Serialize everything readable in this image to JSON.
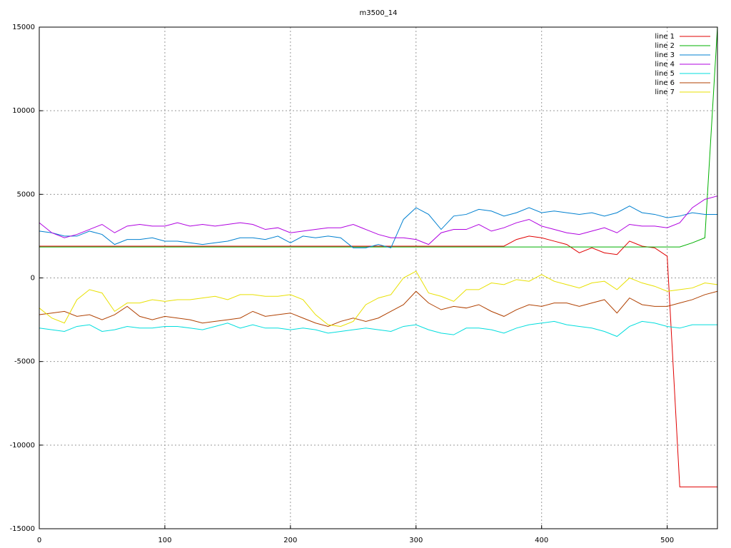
{
  "chart_data": {
    "type": "line",
    "title": "m3500_14",
    "x": [
      0,
      10,
      20,
      30,
      40,
      50,
      60,
      70,
      80,
      90,
      100,
      110,
      120,
      130,
      140,
      150,
      160,
      170,
      180,
      190,
      200,
      210,
      220,
      230,
      240,
      250,
      260,
      270,
      280,
      290,
      300,
      310,
      320,
      330,
      340,
      350,
      360,
      370,
      380,
      390,
      400,
      410,
      420,
      430,
      440,
      450,
      460,
      470,
      480,
      490,
      500,
      510,
      520,
      530,
      540
    ],
    "xlim": [
      0,
      540
    ],
    "xticks": [
      0,
      100,
      200,
      300,
      400,
      500
    ],
    "ylim": [
      -15000,
      15000
    ],
    "yticks": [
      -15000,
      -10000,
      -5000,
      0,
      5000,
      10000,
      15000
    ],
    "grid": true,
    "legend": "top-right",
    "series": [
      {
        "name": "line 1",
        "color": "#e00000",
        "values": [
          1900,
          1900,
          1900,
          1900,
          1900,
          1900,
          1900,
          1900,
          1900,
          1900,
          1900,
          1900,
          1900,
          1900,
          1900,
          1900,
          1900,
          1900,
          1900,
          1900,
          1900,
          1900,
          1900,
          1900,
          1900,
          1900,
          1900,
          1900,
          1900,
          1900,
          1900,
          1900,
          1900,
          1900,
          1900,
          1900,
          1900,
          1900,
          2300,
          2500,
          2400,
          2200,
          2000,
          1500,
          1800,
          1500,
          1400,
          2200,
          1900,
          1800,
          1300,
          -12500,
          -12500,
          -12500,
          -12500
        ]
      },
      {
        "name": "line 2",
        "color": "#00b000",
        "values": [
          1850,
          1850,
          1850,
          1850,
          1850,
          1850,
          1850,
          1850,
          1850,
          1850,
          1850,
          1850,
          1850,
          1850,
          1850,
          1850,
          1850,
          1850,
          1850,
          1850,
          1850,
          1850,
          1850,
          1850,
          1850,
          1850,
          1850,
          1850,
          1850,
          1850,
          1850,
          1850,
          1850,
          1850,
          1850,
          1850,
          1850,
          1850,
          1850,
          1850,
          1850,
          1850,
          1850,
          1850,
          1850,
          1850,
          1850,
          1850,
          1850,
          1850,
          1850,
          1850,
          2100,
          2400,
          15000
        ]
      },
      {
        "name": "line 3",
        "color": "#0080d0",
        "values": [
          2800,
          2700,
          2500,
          2500,
          2800,
          2600,
          2000,
          2300,
          2300,
          2400,
          2200,
          2200,
          2100,
          2000,
          2100,
          2200,
          2400,
          2400,
          2300,
          2500,
          2100,
          2500,
          2400,
          2500,
          2400,
          1800,
          1800,
          2000,
          1800,
          3500,
          4200,
          3800,
          2900,
          3700,
          3800,
          4100,
          4000,
          3700,
          3900,
          4200,
          3900,
          4000,
          3900,
          3800,
          3900,
          3700,
          3900,
          4300,
          3900,
          3800,
          3600,
          3700,
          3900,
          3800,
          3800
        ]
      },
      {
        "name": "line 4",
        "color": "#b000e0",
        "values": [
          3300,
          2700,
          2400,
          2600,
          2900,
          3200,
          2700,
          3100,
          3200,
          3100,
          3100,
          3300,
          3100,
          3200,
          3100,
          3200,
          3300,
          3200,
          2900,
          3000,
          2700,
          2800,
          2900,
          3000,
          3000,
          3200,
          2900,
          2600,
          2400,
          2400,
          2300,
          2000,
          2700,
          2900,
          2900,
          3200,
          2800,
          3000,
          3300,
          3500,
          3100,
          2900,
          2700,
          2600,
          2800,
          3000,
          2700,
          3200,
          3100,
          3100,
          3000,
          3300,
          4200,
          4700,
          4900
        ]
      },
      {
        "name": "line 5",
        "color": "#00dddd",
        "values": [
          -3000,
          -3100,
          -3200,
          -2900,
          -2800,
          -3200,
          -3100,
          -2900,
          -3000,
          -3000,
          -2900,
          -2900,
          -3000,
          -3100,
          -2900,
          -2700,
          -3000,
          -2800,
          -3000,
          -3000,
          -3100,
          -3000,
          -3100,
          -3300,
          -3200,
          -3100,
          -3000,
          -3100,
          -3200,
          -2900,
          -2800,
          -3100,
          -3300,
          -3400,
          -3000,
          -3000,
          -3100,
          -3300,
          -3000,
          -2800,
          -2700,
          -2600,
          -2800,
          -2900,
          -3000,
          -3200,
          -3500,
          -2900,
          -2600,
          -2700,
          -2900,
          -3000,
          -2800,
          -2800,
          -2800
        ]
      },
      {
        "name": "line 6",
        "color": "#b04000",
        "values": [
          -2200,
          -2100,
          -2000,
          -2300,
          -2200,
          -2500,
          -2200,
          -1700,
          -2300,
          -2500,
          -2300,
          -2400,
          -2500,
          -2700,
          -2600,
          -2500,
          -2400,
          -2000,
          -2300,
          -2200,
          -2100,
          -2400,
          -2700,
          -2900,
          -2600,
          -2400,
          -2600,
          -2400,
          -2000,
          -1600,
          -800,
          -1500,
          -1900,
          -1700,
          -1800,
          -1600,
          -2000,
          -2300,
          -1900,
          -1600,
          -1700,
          -1500,
          -1500,
          -1700,
          -1500,
          -1300,
          -2100,
          -1200,
          -1600,
          -1700,
          -1700,
          -1500,
          -1300,
          -1000,
          -800
        ]
      },
      {
        "name": "line 7",
        "color": "#e8e000",
        "values": [
          -1800,
          -2400,
          -2700,
          -1300,
          -700,
          -900,
          -2000,
          -1500,
          -1500,
          -1300,
          -1400,
          -1300,
          -1300,
          -1200,
          -1100,
          -1300,
          -1000,
          -1000,
          -1100,
          -1100,
          -1000,
          -1300,
          -2200,
          -2800,
          -2900,
          -2600,
          -1600,
          -1200,
          -1000,
          0,
          400,
          -900,
          -1100,
          -1400,
          -700,
          -700,
          -300,
          -400,
          -100,
          -200,
          200,
          -200,
          -400,
          -600,
          -300,
          -200,
          -700,
          0,
          -300,
          -500,
          -800,
          -700,
          -600,
          -300,
          -400
        ]
      }
    ]
  }
}
